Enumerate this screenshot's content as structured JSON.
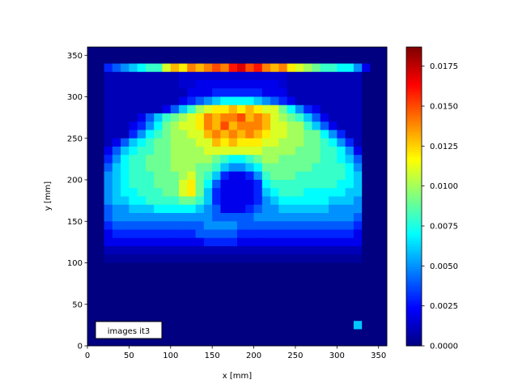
{
  "chart_data": {
    "type": "heatmap",
    "colormap": "jet",
    "xlabel": "x [mm]",
    "ylabel": "y [mm]",
    "xlim": [
      0,
      360
    ],
    "ylim": [
      0,
      360
    ],
    "xticks": [
      "0",
      "50",
      "100",
      "150",
      "200",
      "250",
      "300",
      "350"
    ],
    "yticks": [
      "0",
      "50",
      "100",
      "150",
      "200",
      "250",
      "300",
      "350"
    ],
    "annotation": "images it3",
    "colorbar": {
      "vmin": 0.0,
      "vmax": 0.0187,
      "ticks": [
        "0.0000",
        "0.0025",
        "0.0050",
        "0.0075",
        "0.0100",
        "0.0125",
        "0.0150",
        "0.0175"
      ]
    },
    "grid": false,
    "cell_size_mm": 10,
    "row_y_centers": [
      355,
      345,
      335,
      325,
      315,
      305,
      295,
      285,
      275,
      265,
      255,
      245,
      235,
      225,
      215,
      205,
      195,
      185,
      175,
      165,
      155,
      145,
      135,
      125,
      115,
      105,
      95,
      85,
      75,
      65,
      55,
      45,
      35,
      25,
      15,
      5
    ],
    "values": [
      [
        0,
        0,
        0,
        0,
        0,
        0,
        0,
        0,
        0,
        0,
        0,
        0,
        0,
        0,
        0,
        0,
        0,
        0,
        0,
        0,
        0,
        0,
        0,
        0,
        0,
        0,
        0,
        0,
        0,
        0,
        0,
        0,
        0,
        0,
        0,
        0
      ],
      [
        0,
        0,
        0,
        0,
        0,
        0,
        0,
        0,
        0,
        0,
        0,
        0,
        0,
        0,
        0,
        0,
        0,
        0,
        0,
        0,
        0,
        0,
        0,
        0,
        0,
        0,
        0,
        0,
        0,
        0,
        0,
        0,
        0,
        0,
        0,
        0
      ],
      [
        0,
        0,
        0.003,
        0.004,
        0.005,
        0.006,
        0.007,
        0.008,
        0.008,
        0.011,
        0.013,
        0.012,
        0.014,
        0.013,
        0.014,
        0.015,
        0.014,
        0.016,
        0.017,
        0.015,
        0.016,
        0.014,
        0.013,
        0.014,
        0.012,
        0.011,
        0.01,
        0.009,
        0.008,
        0.008,
        0.007,
        0.007,
        0.005,
        0.002,
        0,
        0
      ],
      [
        0,
        0,
        0.001,
        0.001,
        0.001,
        0.001,
        0.001,
        0.001,
        0.001,
        0.001,
        0.001,
        0.0015,
        0.0015,
        0.0015,
        0.0015,
        0.0015,
        0.0015,
        0.0015,
        0.0015,
        0.0015,
        0.0015,
        0.0015,
        0.0015,
        0.0015,
        0.001,
        0.001,
        0.001,
        0.001,
        0.001,
        0.001,
        0.001,
        0.001,
        0.001,
        0,
        0,
        0
      ],
      [
        0,
        0,
        0.001,
        0.001,
        0.001,
        0.001,
        0.001,
        0.001,
        0.001,
        0.001,
        0.001,
        0.0015,
        0.0015,
        0.002,
        0.002,
        0.002,
        0.002,
        0.002,
        0.002,
        0.002,
        0.002,
        0.002,
        0.002,
        0.0015,
        0.001,
        0.001,
        0.001,
        0.001,
        0.001,
        0.001,
        0.001,
        0.001,
        0.001,
        0,
        0,
        0
      ],
      [
        0,
        0,
        0.001,
        0.001,
        0.001,
        0.001,
        0.001,
        0.001,
        0.001,
        0.001,
        0.001,
        0.001,
        0.002,
        0.002,
        0.002,
        0.003,
        0.003,
        0.003,
        0.003,
        0.003,
        0.003,
        0.002,
        0.002,
        0.002,
        0.001,
        0.001,
        0.001,
        0.001,
        0.001,
        0.001,
        0.001,
        0.001,
        0.001,
        0,
        0,
        0
      ],
      [
        0,
        0,
        0.001,
        0.001,
        0.001,
        0.001,
        0.001,
        0.001,
        0.001,
        0.001,
        0.001,
        0.002,
        0.003,
        0.004,
        0.005,
        0.006,
        0.007,
        0.007,
        0.007,
        0.007,
        0.006,
        0.005,
        0.004,
        0.003,
        0.002,
        0.001,
        0.001,
        0.001,
        0.001,
        0.001,
        0.001,
        0.001,
        0.001,
        0,
        0,
        0
      ],
      [
        0,
        0,
        0.001,
        0.001,
        0.001,
        0.001,
        0.001,
        0.001,
        0.001,
        0.002,
        0.004,
        0.006,
        0.008,
        0.01,
        0.011,
        0.012,
        0.012,
        0.013,
        0.012,
        0.013,
        0.012,
        0.011,
        0.011,
        0.009,
        0.007,
        0.005,
        0.003,
        0.002,
        0.001,
        0.001,
        0.001,
        0.001,
        0.001,
        0,
        0,
        0
      ],
      [
        0,
        0,
        0.001,
        0.001,
        0.001,
        0.001,
        0.002,
        0.004,
        0.006,
        0.008,
        0.009,
        0.01,
        0.011,
        0.012,
        0.014,
        0.013,
        0.014,
        0.014,
        0.015,
        0.013,
        0.014,
        0.013,
        0.011,
        0.01,
        0.009,
        0.008,
        0.006,
        0.004,
        0.002,
        0.001,
        0.001,
        0.001,
        0.001,
        0,
        0,
        0
      ],
      [
        0,
        0,
        0.001,
        0.001,
        0.001,
        0.002,
        0.003,
        0.005,
        0.007,
        0.009,
        0.01,
        0.011,
        0.011,
        0.012,
        0.014,
        0.013,
        0.015,
        0.013,
        0.014,
        0.014,
        0.014,
        0.013,
        0.011,
        0.011,
        0.01,
        0.01,
        0.008,
        0.006,
        0.004,
        0.002,
        0.001,
        0.001,
        0.001,
        0,
        0,
        0
      ],
      [
        0,
        0,
        0.001,
        0.001,
        0.001,
        0.003,
        0.005,
        0.007,
        0.008,
        0.009,
        0.01,
        0.01,
        0.011,
        0.011,
        0.013,
        0.014,
        0.013,
        0.014,
        0.013,
        0.014,
        0.013,
        0.012,
        0.011,
        0.011,
        0.01,
        0.01,
        0.009,
        0.009,
        0.007,
        0.005,
        0.003,
        0.001,
        0.001,
        0,
        0,
        0
      ],
      [
        0,
        0,
        0.001,
        0.002,
        0.004,
        0.006,
        0.007,
        0.008,
        0.009,
        0.009,
        0.01,
        0.01,
        0.01,
        0.011,
        0.011,
        0.013,
        0.012,
        0.013,
        0.012,
        0.012,
        0.012,
        0.011,
        0.011,
        0.01,
        0.01,
        0.01,
        0.009,
        0.009,
        0.008,
        0.007,
        0.005,
        0.003,
        0.001,
        0,
        0,
        0
      ],
      [
        0,
        0,
        0.002,
        0.004,
        0.006,
        0.007,
        0.008,
        0.008,
        0.009,
        0.009,
        0.01,
        0.01,
        0.01,
        0.01,
        0.011,
        0.011,
        0.011,
        0.011,
        0.011,
        0.011,
        0.011,
        0.01,
        0.01,
        0.01,
        0.01,
        0.009,
        0.009,
        0.009,
        0.008,
        0.008,
        0.007,
        0.005,
        0.002,
        0,
        0,
        0
      ],
      [
        0,
        0,
        0.003,
        0.005,
        0.007,
        0.008,
        0.008,
        0.009,
        0.009,
        0.009,
        0.01,
        0.01,
        0.01,
        0.01,
        0.01,
        0.009,
        0.008,
        0.007,
        0.007,
        0.008,
        0.009,
        0.01,
        0.01,
        0.009,
        0.009,
        0.009,
        0.009,
        0.009,
        0.008,
        0.008,
        0.007,
        0.006,
        0.004,
        0,
        0,
        0
      ],
      [
        0,
        0,
        0.004,
        0.006,
        0.007,
        0.008,
        0.008,
        0.009,
        0.009,
        0.009,
        0.01,
        0.01,
        0.01,
        0.009,
        0.009,
        0.008,
        0.006,
        0.005,
        0.005,
        0.006,
        0.007,
        0.009,
        0.009,
        0.009,
        0.009,
        0.009,
        0.009,
        0.008,
        0.008,
        0.008,
        0.008,
        0.007,
        0.005,
        0,
        0,
        0
      ],
      [
        0,
        0,
        0.005,
        0.006,
        0.007,
        0.008,
        0.008,
        0.008,
        0.009,
        0.009,
        0.009,
        0.01,
        0.011,
        0.009,
        0.008,
        0.006,
        0.003,
        0.002,
        0.002,
        0.003,
        0.005,
        0.008,
        0.009,
        0.009,
        0.009,
        0.008,
        0.008,
        0.008,
        0.008,
        0.008,
        0.008,
        0.007,
        0.006,
        0,
        0,
        0
      ],
      [
        0,
        0,
        0.005,
        0.006,
        0.007,
        0.008,
        0.008,
        0.008,
        0.009,
        0.009,
        0.009,
        0.011,
        0.012,
        0.009,
        0.007,
        0.004,
        0.002,
        0.002,
        0.002,
        0.002,
        0.003,
        0.007,
        0.008,
        0.008,
        0.008,
        0.008,
        0.008,
        0.008,
        0.008,
        0.008,
        0.007,
        0.007,
        0.006,
        0,
        0,
        0
      ],
      [
        0,
        0,
        0.005,
        0.006,
        0.007,
        0.007,
        0.008,
        0.008,
        0.008,
        0.009,
        0.009,
        0.011,
        0.012,
        0.009,
        0.006,
        0.003,
        0.002,
        0.002,
        0.002,
        0.002,
        0.003,
        0.006,
        0.007,
        0.008,
        0.008,
        0.008,
        0.007,
        0.007,
        0.007,
        0.007,
        0.007,
        0.006,
        0.006,
        0,
        0,
        0
      ],
      [
        0,
        0,
        0.005,
        0.006,
        0.006,
        0.007,
        0.007,
        0.008,
        0.008,
        0.008,
        0.008,
        0.009,
        0.009,
        0.008,
        0.006,
        0.003,
        0.002,
        0.002,
        0.002,
        0.002,
        0.003,
        0.005,
        0.006,
        0.007,
        0.007,
        0.007,
        0.007,
        0.007,
        0.007,
        0.006,
        0.006,
        0.006,
        0.005,
        0,
        0,
        0
      ],
      [
        0,
        0,
        0.004,
        0.005,
        0.005,
        0.006,
        0.006,
        0.006,
        0.007,
        0.007,
        0.007,
        0.007,
        0.007,
        0.006,
        0.005,
        0.004,
        0.002,
        0.002,
        0.002,
        0.003,
        0.004,
        0.005,
        0.005,
        0.006,
        0.006,
        0.006,
        0.006,
        0.006,
        0.006,
        0.005,
        0.005,
        0.005,
        0.005,
        0,
        0,
        0
      ],
      [
        0,
        0,
        0.004,
        0.005,
        0.005,
        0.005,
        0.005,
        0.005,
        0.005,
        0.005,
        0.005,
        0.005,
        0.005,
        0.005,
        0.005,
        0.004,
        0.004,
        0.004,
        0.004,
        0.004,
        0.005,
        0.005,
        0.005,
        0.005,
        0.005,
        0.005,
        0.005,
        0.005,
        0.005,
        0.005,
        0.005,
        0.005,
        0.004,
        0,
        0,
        0
      ],
      [
        0,
        0,
        0.003,
        0.004,
        0.004,
        0.004,
        0.004,
        0.004,
        0.004,
        0.004,
        0.004,
        0.004,
        0.004,
        0.004,
        0.005,
        0.005,
        0.005,
        0.005,
        0.004,
        0.004,
        0.004,
        0.004,
        0.004,
        0.004,
        0.004,
        0.004,
        0.004,
        0.004,
        0.004,
        0.004,
        0.004,
        0.004,
        0.003,
        0,
        0,
        0
      ],
      [
        0,
        0,
        0.002,
        0.003,
        0.003,
        0.003,
        0.003,
        0.003,
        0.003,
        0.003,
        0.003,
        0.003,
        0.003,
        0.004,
        0.004,
        0.004,
        0.004,
        0.004,
        0.003,
        0.003,
        0.003,
        0.003,
        0.003,
        0.003,
        0.003,
        0.003,
        0.003,
        0.003,
        0.003,
        0.003,
        0.003,
        0.003,
        0.002,
        0,
        0,
        0
      ],
      [
        0,
        0,
        0.002,
        0.002,
        0.002,
        0.002,
        0.002,
        0.002,
        0.002,
        0.002,
        0.002,
        0.002,
        0.002,
        0.002,
        0.003,
        0.003,
        0.003,
        0.003,
        0.002,
        0.002,
        0.002,
        0.002,
        0.002,
        0.002,
        0.002,
        0.002,
        0.002,
        0.002,
        0.002,
        0.002,
        0.002,
        0.002,
        0.002,
        0,
        0,
        0
      ],
      [
        0,
        0,
        0.001,
        0.001,
        0.001,
        0.001,
        0.001,
        0.001,
        0.001,
        0.001,
        0.001,
        0.001,
        0.001,
        0.001,
        0.001,
        0.001,
        0.001,
        0.001,
        0.001,
        0.001,
        0.001,
        0.001,
        0.001,
        0.001,
        0.001,
        0.001,
        0.001,
        0.001,
        0.001,
        0.001,
        0.001,
        0.001,
        0.001,
        0,
        0,
        0
      ],
      [
        0,
        0,
        0.0005,
        0.0005,
        0.0005,
        0.0005,
        0.0005,
        0.0005,
        0.0005,
        0.0005,
        0.0005,
        0.0005,
        0.0005,
        0.0005,
        0.0005,
        0.0005,
        0.0005,
        0.0005,
        0.0005,
        0.0005,
        0.0005,
        0.0005,
        0.0005,
        0.0005,
        0.0005,
        0.0005,
        0.0005,
        0.0005,
        0.0005,
        0.0005,
        0.0005,
        0.0005,
        0.0005,
        0,
        0,
        0
      ],
      [
        0,
        0,
        0,
        0,
        0,
        0,
        0,
        0,
        0,
        0,
        0,
        0,
        0,
        0,
        0,
        0,
        0,
        0,
        0,
        0,
        0,
        0,
        0,
        0,
        0,
        0,
        0,
        0,
        0,
        0,
        0,
        0,
        0,
        0,
        0,
        0
      ],
      [
        0,
        0,
        0,
        0,
        0,
        0,
        0,
        0,
        0,
        0,
        0,
        0,
        0,
        0,
        0,
        0,
        0,
        0,
        0,
        0,
        0,
        0,
        0,
        0,
        0,
        0,
        0,
        0,
        0,
        0,
        0,
        0,
        0,
        0,
        0,
        0
      ],
      [
        0,
        0,
        0,
        0,
        0,
        0,
        0,
        0,
        0,
        0,
        0,
        0,
        0,
        0,
        0,
        0,
        0,
        0,
        0,
        0,
        0,
        0,
        0,
        0,
        0,
        0,
        0,
        0,
        0,
        0,
        0,
        0,
        0,
        0,
        0,
        0
      ],
      [
        0,
        0,
        0,
        0,
        0,
        0,
        0,
        0,
        0,
        0,
        0,
        0,
        0,
        0,
        0,
        0,
        0,
        0,
        0,
        0,
        0,
        0,
        0,
        0,
        0,
        0,
        0,
        0,
        0,
        0,
        0,
        0,
        0,
        0,
        0,
        0
      ],
      [
        0,
        0,
        0,
        0,
        0,
        0,
        0,
        0,
        0,
        0,
        0,
        0,
        0,
        0,
        0,
        0,
        0,
        0,
        0,
        0,
        0,
        0,
        0,
        0,
        0,
        0,
        0,
        0,
        0,
        0,
        0,
        0,
        0,
        0,
        0,
        0
      ],
      [
        0,
        0,
        0,
        0,
        0,
        0,
        0,
        0,
        0,
        0,
        0,
        0,
        0,
        0,
        0,
        0,
        0,
        0,
        0,
        0,
        0,
        0,
        0,
        0,
        0,
        0,
        0,
        0,
        0,
        0,
        0,
        0,
        0,
        0,
        0,
        0
      ],
      [
        0,
        0,
        0,
        0,
        0,
        0,
        0,
        0,
        0,
        0,
        0,
        0,
        0,
        0,
        0,
        0,
        0,
        0,
        0,
        0,
        0,
        0,
        0,
        0,
        0,
        0,
        0,
        0,
        0,
        0,
        0,
        0,
        0,
        0,
        0,
        0
      ],
      [
        0,
        0,
        0,
        0,
        0,
        0,
        0,
        0,
        0,
        0,
        0,
        0,
        0,
        0,
        0,
        0,
        0,
        0,
        0,
        0,
        0,
        0,
        0,
        0,
        0,
        0,
        0,
        0,
        0,
        0,
        0,
        0,
        0.006,
        0,
        0,
        0
      ],
      [
        0,
        0,
        0.001,
        0,
        0,
        0,
        0,
        0,
        0,
        0,
        0,
        0,
        0,
        0,
        0,
        0,
        0,
        0,
        0,
        0,
        0,
        0,
        0,
        0,
        0,
        0,
        0,
        0,
        0,
        0,
        0,
        0,
        0,
        0,
        0,
        0
      ],
      [
        0,
        0,
        0,
        0,
        0,
        0,
        0,
        0,
        0,
        0,
        0,
        0,
        0,
        0,
        0,
        0,
        0,
        0,
        0,
        0,
        0,
        0,
        0,
        0,
        0,
        0,
        0,
        0,
        0,
        0,
        0,
        0,
        0,
        0,
        0,
        0
      ]
    ]
  }
}
